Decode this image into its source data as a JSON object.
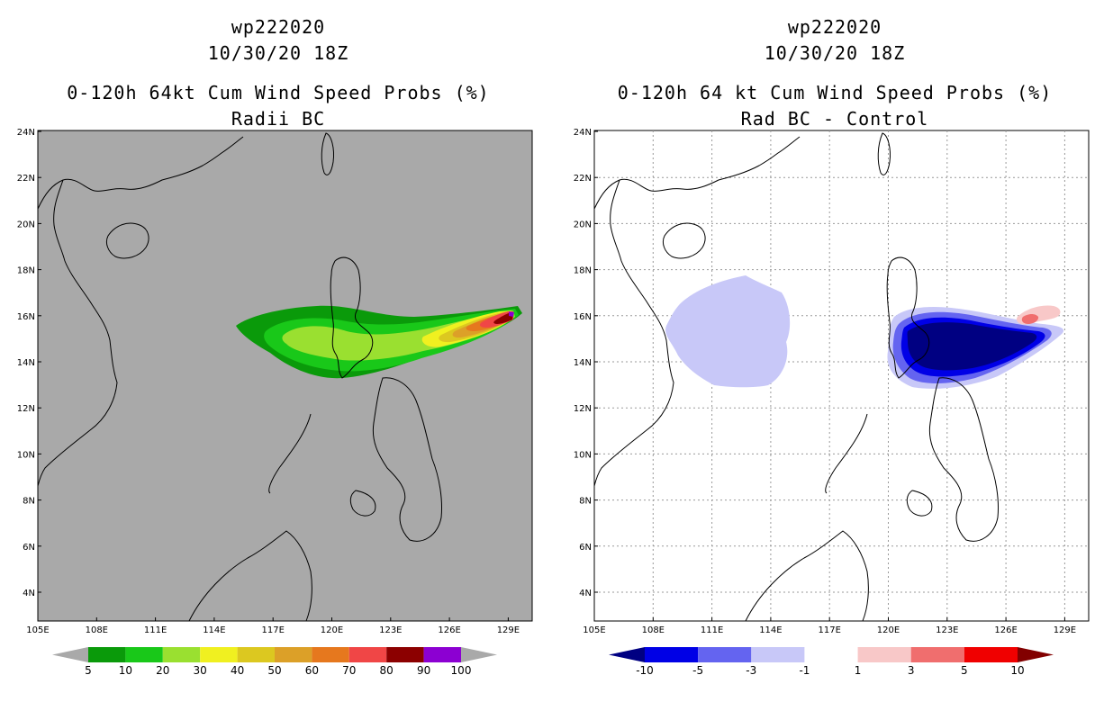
{
  "left_panel": {
    "title_line1": "wp222020",
    "title_line2": "10/30/20 18Z",
    "title_line3": "0-120h 64kt Cum Wind Speed Probs (%)",
    "title_line4": "Radii BC",
    "background_color": "#a9a9a9",
    "colorbar": {
      "labels": [
        "5",
        "10",
        "20",
        "30",
        "40",
        "50",
        "60",
        "70",
        "80",
        "90",
        "100"
      ],
      "colors": [
        "#0a9a0a",
        "#19c819",
        "#9ae030",
        "#f0f020",
        "#dcc820",
        "#dca028",
        "#e6781e",
        "#f04646",
        "#8c0000",
        "#8c00d2"
      ],
      "under_color": "#a9a9a9",
      "over_color": "#a9a9a9"
    }
  },
  "right_panel": {
    "title_line1": "wp222020",
    "title_line2": "10/30/20 18Z",
    "title_line3": "0-120h 64 kt Cum Wind Speed Probs (%)",
    "title_line4": "Rad BC - Control",
    "background_color": "#ffffff",
    "colorbar": {
      "labels": [
        "-10",
        "-5",
        "-3",
        "-1",
        "1",
        "3",
        "5",
        "10"
      ],
      "colors": [
        "#0000e6",
        "#6464f0",
        "#c8c8f8",
        "#ffffff",
        "#f8c8c8",
        "#f06e6e",
        "#f00000"
      ],
      "under_color": "#000082",
      "over_color": "#820000"
    }
  },
  "map": {
    "lat_labels": [
      "24N",
      "22N",
      "20N",
      "18N",
      "16N",
      "14N",
      "12N",
      "10N",
      "8N",
      "6N",
      "4N"
    ],
    "lon_labels": [
      "105E",
      "108E",
      "111E",
      "114E",
      "117E",
      "120E",
      "123E",
      "126E",
      "129E"
    ]
  }
}
